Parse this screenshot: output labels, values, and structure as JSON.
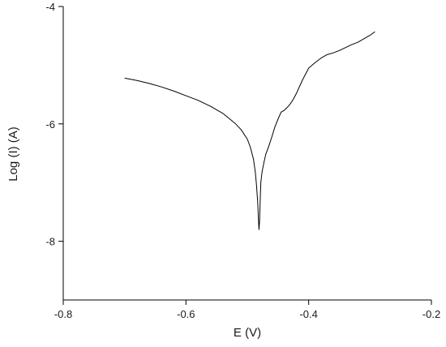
{
  "chart_data": {
    "type": "line",
    "title": "",
    "xlabel": "E (V)",
    "ylabel": "Log (I) (A)",
    "xlim": [
      -0.8,
      -0.2
    ],
    "ylim": [
      -9,
      -4
    ],
    "x_ticks": [
      -0.8,
      -0.6,
      -0.4,
      -0.2
    ],
    "x_tick_labels": [
      "-0.8",
      "-0.6",
      "-0.4",
      "-0.2"
    ],
    "y_ticks": [
      -4,
      -6,
      -8
    ],
    "y_tick_labels": [
      "-4",
      "-6",
      "-8"
    ],
    "grid": false,
    "series": [
      {
        "color": "#000000",
        "x": [
          -0.7,
          -0.68,
          -0.66,
          -0.64,
          -0.62,
          -0.6,
          -0.58,
          -0.56,
          -0.54,
          -0.52,
          -0.51,
          -0.5,
          -0.495,
          -0.49,
          -0.487,
          -0.485,
          -0.483,
          -0.482,
          -0.481,
          -0.48,
          -0.479,
          -0.478,
          -0.476,
          -0.473,
          -0.47,
          -0.465,
          -0.46,
          -0.455,
          -0.45,
          -0.445,
          -0.44,
          -0.435,
          -0.43,
          -0.425,
          -0.42,
          -0.41,
          -0.4,
          -0.39,
          -0.38,
          -0.37,
          -0.36,
          -0.35,
          -0.34,
          -0.33,
          -0.32,
          -0.31,
          -0.3,
          -0.292
        ],
        "y": [
          -5.22,
          -5.26,
          -5.31,
          -5.37,
          -5.44,
          -5.52,
          -5.6,
          -5.7,
          -5.82,
          -5.99,
          -6.1,
          -6.26,
          -6.4,
          -6.6,
          -6.82,
          -7.05,
          -7.35,
          -7.6,
          -7.8,
          -7.65,
          -7.3,
          -7.0,
          -6.82,
          -6.66,
          -6.52,
          -6.38,
          -6.22,
          -6.05,
          -5.92,
          -5.8,
          -5.77,
          -5.72,
          -5.66,
          -5.58,
          -5.48,
          -5.25,
          -5.05,
          -4.96,
          -4.88,
          -4.82,
          -4.79,
          -4.75,
          -4.7,
          -4.65,
          -4.61,
          -4.55,
          -4.49,
          -4.43
        ]
      }
    ]
  }
}
